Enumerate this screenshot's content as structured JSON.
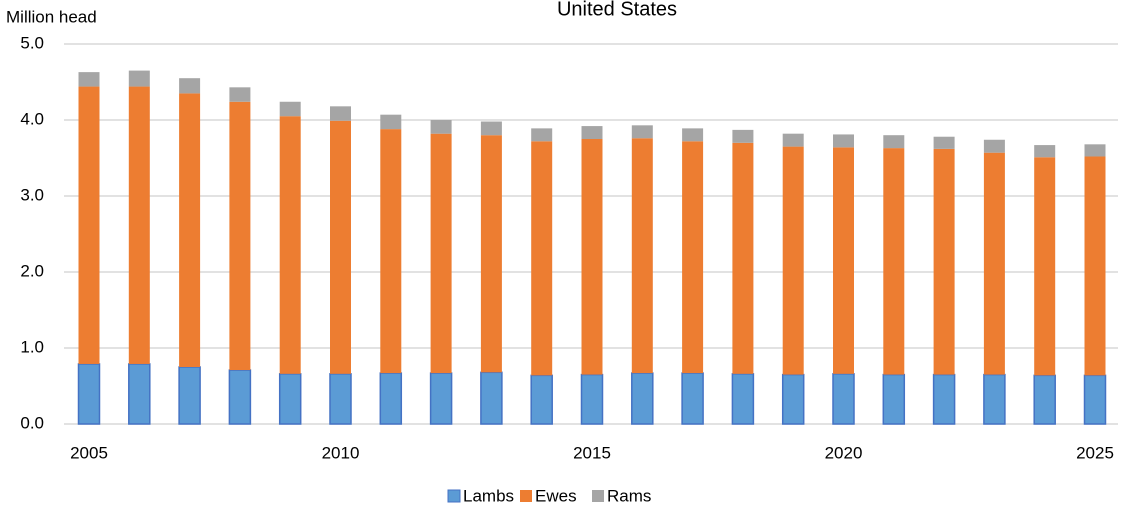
{
  "chart_data": {
    "type": "stacked_bar",
    "title": "United States",
    "y_label": "Million head",
    "categories": [
      "2005",
      null,
      null,
      null,
      null,
      "2010",
      null,
      null,
      null,
      null,
      "2015",
      null,
      null,
      null,
      null,
      "2020",
      null,
      null,
      null,
      null,
      "2025"
    ],
    "series": [
      {
        "name": "Lambs",
        "color": "#5b9bd5",
        "values": [
          0.79,
          0.79,
          0.75,
          0.71,
          0.66,
          0.66,
          0.67,
          0.67,
          0.68,
          0.64,
          0.65,
          0.67,
          0.67,
          0.66,
          0.65,
          0.66,
          0.65,
          0.65,
          0.65,
          0.64,
          0.64
        ]
      },
      {
        "name": "Ewes",
        "color": "#ed7d31",
        "values": [
          3.65,
          3.65,
          3.6,
          3.53,
          3.39,
          3.33,
          3.21,
          3.15,
          3.12,
          3.08,
          3.1,
          3.09,
          3.05,
          3.04,
          3.0,
          2.98,
          2.98,
          2.97,
          2.92,
          2.87,
          2.88
        ]
      },
      {
        "name": "Rams",
        "color": "#a5a5a5",
        "values": [
          0.19,
          0.21,
          0.2,
          0.19,
          0.19,
          0.19,
          0.19,
          0.18,
          0.18,
          0.17,
          0.17,
          0.17,
          0.17,
          0.17,
          0.17,
          0.17,
          0.17,
          0.16,
          0.17,
          0.16,
          0.16
        ]
      }
    ],
    "ylim": [
      0,
      5
    ],
    "yticks": [
      {
        "value": 0,
        "label": "0.0"
      },
      {
        "value": 1,
        "label": "1.0"
      },
      {
        "value": 2,
        "label": "2.0"
      },
      {
        "value": 3,
        "label": "3.0"
      },
      {
        "value": 4,
        "label": "4.0"
      },
      {
        "value": 5,
        "label": "5.0"
      }
    ],
    "grid": true,
    "legend": "bottom"
  }
}
